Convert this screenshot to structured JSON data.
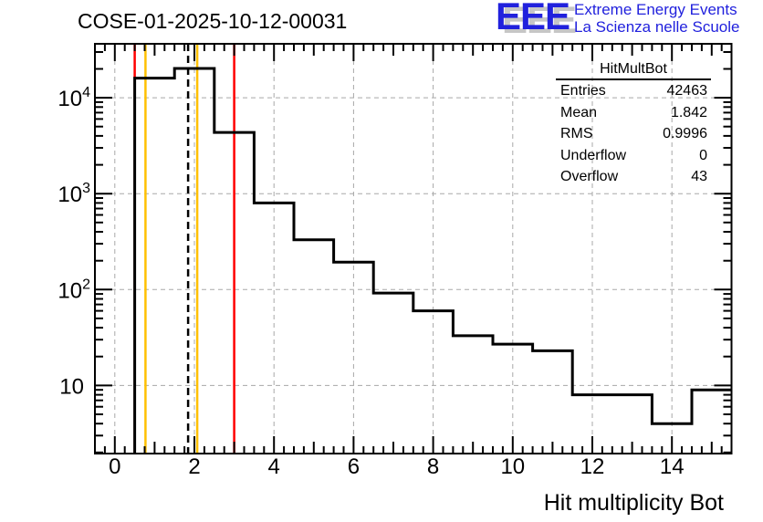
{
  "header": {
    "title": "COSE-01-2025-10-12-00031"
  },
  "logo": {
    "acronym": "EEE",
    "tagline_line1": "Extreme Energy Events",
    "tagline_line2": "La Scienza nelle Scuole",
    "text_color": "#2121dd",
    "shadow_color": "#c6c6c6"
  },
  "stats_box": {
    "title": "HitMultBot",
    "rows": [
      {
        "label": "Entries",
        "value": "42463"
      },
      {
        "label": "Mean",
        "value": "1.842"
      },
      {
        "label": "RMS",
        "value": "0.9996"
      },
      {
        "label": "Underflow",
        "value": "0"
      },
      {
        "label": "Overflow",
        "value": "43"
      }
    ]
  },
  "chart_data": {
    "type": "bar",
    "title": "COSE-01-2025-10-12-00031",
    "xlabel": "Hit multiplicity Bot",
    "ylabel": "",
    "y_scale": "log",
    "xlim": [
      -0.5,
      15.5
    ],
    "ylim": [
      1.95,
      36500
    ],
    "grid": true,
    "grid_color": "#a8a8a8",
    "line_color": "#000000",
    "bin_width": 1,
    "bin_centers": [
      1,
      2,
      3,
      4,
      5,
      6,
      7,
      8,
      9,
      10,
      11,
      12,
      13,
      14,
      15
    ],
    "values": [
      16000,
      20200,
      4350,
      800,
      330,
      193,
      92,
      60,
      33,
      27,
      23,
      8,
      8,
      4,
      9
    ],
    "entries": 42463,
    "mean": 1.842,
    "rms": 0.9996,
    "underflow": 0,
    "overflow": 43,
    "x_tick_labels": [
      0,
      2,
      4,
      6,
      8,
      10,
      12,
      14
    ],
    "y_tick_labels": [
      "10",
      "10^2",
      "10^3",
      "10^4"
    ],
    "vlines": [
      {
        "x": 0.5,
        "color": "#ff0000",
        "style": "solid"
      },
      {
        "x": 3.0,
        "color": "#ff0000",
        "style": "solid"
      },
      {
        "x": 0.77,
        "color": "#ffc000",
        "style": "solid"
      },
      {
        "x": 2.07,
        "color": "#ffc000",
        "style": "solid"
      },
      {
        "x": 1.842,
        "color": "#000000",
        "style": "dashed"
      }
    ]
  }
}
